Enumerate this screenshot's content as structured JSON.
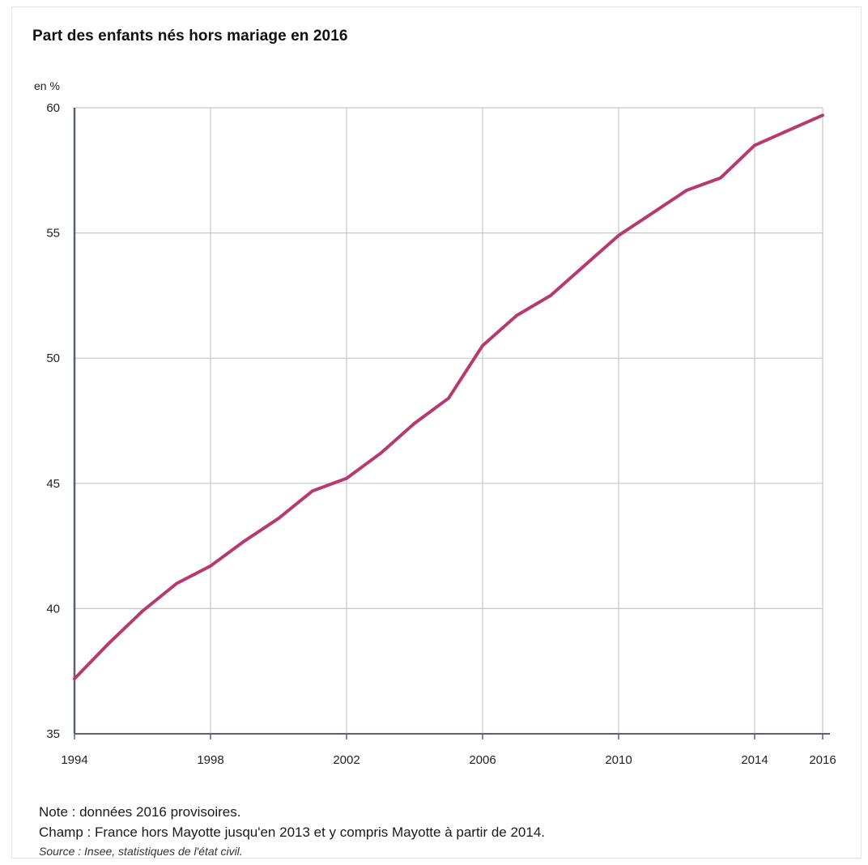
{
  "chart_data": {
    "type": "line",
    "title": "Part des enfants nés hors mariage en 2016",
    "ylabel": "en %",
    "xlabel": "",
    "x": [
      1994,
      1995,
      1996,
      1997,
      1998,
      1999,
      2000,
      2001,
      2002,
      2003,
      2004,
      2005,
      2006,
      2007,
      2008,
      2009,
      2010,
      2011,
      2012,
      2013,
      2014,
      2015,
      2016
    ],
    "series": [
      {
        "color": "#b8396e",
        "values": [
          37.2,
          38.6,
          39.9,
          41.0,
          41.7,
          42.7,
          43.6,
          44.7,
          45.2,
          46.2,
          47.4,
          48.4,
          50.5,
          51.7,
          52.5,
          53.7,
          54.9,
          55.8,
          56.7,
          57.2,
          58.5,
          59.1,
          59.7
        ]
      }
    ],
    "xticks": [
      1994,
      1998,
      2002,
      2006,
      2010,
      2014,
      2016
    ],
    "yticks": [
      35,
      40,
      45,
      50,
      55,
      60
    ],
    "xlim": [
      1994,
      2016
    ],
    "ylim": [
      35,
      60
    ],
    "grid": true,
    "legend": "none"
  },
  "notes": {
    "note": "Note : données 2016 provisoires.",
    "champ": "Champ : France hors Mayotte jusqu'en 2013 et y compris Mayotte à partir de 2014.",
    "source": "Source : Insee, statistiques de l'état civil."
  },
  "colors": {
    "line": "#b8396e",
    "grid": "#c8c8c8",
    "axis": "#5a5f7a"
  }
}
